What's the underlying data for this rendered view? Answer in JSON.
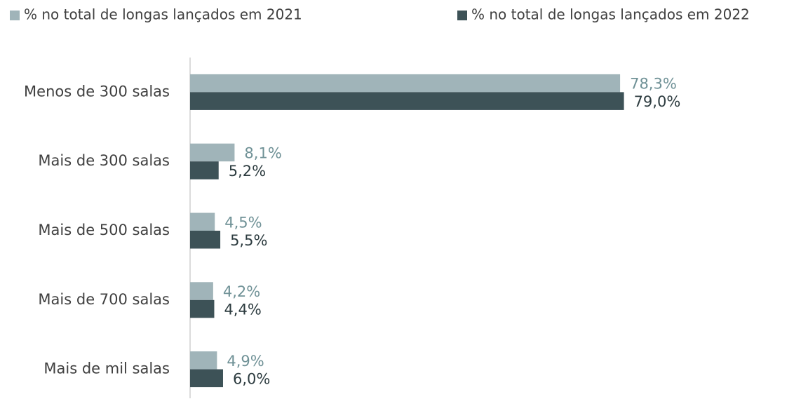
{
  "chart_data": {
    "type": "bar",
    "orientation": "horizontal",
    "categories": [
      "Menos de 300 salas",
      "Mais de 300 salas",
      "Mais de 500 salas",
      "Mais de 700 salas",
      "Mais de mil salas"
    ],
    "series": [
      {
        "name": "% no total de longas lançados em 2021",
        "color": "#a0b4b9",
        "label_color": "#6f9196",
        "values": [
          78.3,
          8.1,
          4.5,
          4.2,
          4.9
        ],
        "value_labels": [
          "78,3%",
          "8,1%",
          "4,5%",
          "4,2%",
          "4,9%"
        ]
      },
      {
        "name": "% no total de longas lançados em 2022",
        "color": "#3d5257",
        "label_color": "#2c3b3f",
        "values": [
          79.0,
          5.2,
          5.5,
          4.4,
          6.0
        ],
        "value_labels": [
          "79,0%",
          "5,2%",
          "5,5%",
          "4,4%",
          "6,0%"
        ]
      }
    ],
    "legend": "top"
  }
}
